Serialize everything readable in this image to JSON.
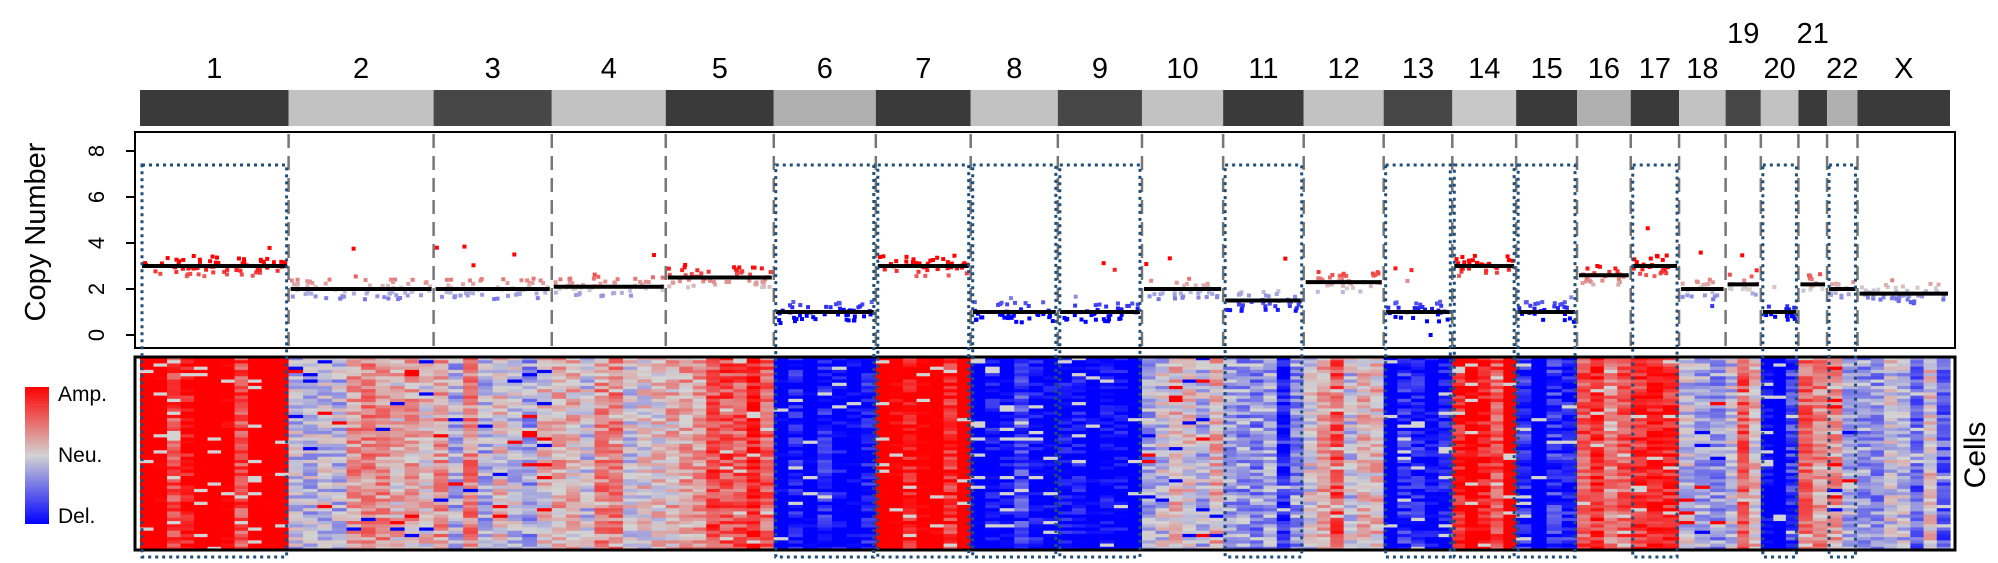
{
  "chart_data": {
    "type": "heatmap",
    "chromosomes": [
      {
        "name": "1",
        "size": 249,
        "shade": "#3a3a3a",
        "state": 3.0
      },
      {
        "name": "2",
        "size": 243,
        "shade": "#c2c2c2",
        "state": 2.0
      },
      {
        "name": "3",
        "size": 198,
        "shade": "#474747",
        "state": 2.0
      },
      {
        "name": "4",
        "size": 191,
        "shade": "#c2c2c2",
        "state": 2.1
      },
      {
        "name": "5",
        "size": 181,
        "shade": "#3a3a3a",
        "state": 2.5
      },
      {
        "name": "6",
        "size": 171,
        "shade": "#b0b0b0",
        "state": 1.0
      },
      {
        "name": "7",
        "size": 159,
        "shade": "#3a3a3a",
        "state": 3.0
      },
      {
        "name": "8",
        "size": 146,
        "shade": "#c2c2c2",
        "state": 1.0
      },
      {
        "name": "9",
        "size": 141,
        "shade": "#474747",
        "state": 1.0
      },
      {
        "name": "10",
        "size": 136,
        "shade": "#c2c2c2",
        "state": 2.0
      },
      {
        "name": "11",
        "size": 135,
        "shade": "#3a3a3a",
        "state": 1.5
      },
      {
        "name": "12",
        "size": 134,
        "shade": "#c2c2c2",
        "state": 2.3
      },
      {
        "name": "13",
        "size": 115,
        "shade": "#474747",
        "state": 1.0
      },
      {
        "name": "14",
        "size": 107,
        "shade": "#c8c8c8",
        "state": 3.0
      },
      {
        "name": "15",
        "size": 102,
        "shade": "#3a3a3a",
        "state": 1.0
      },
      {
        "name": "16",
        "size": 90,
        "shade": "#b0b0b0",
        "state": 2.6
      },
      {
        "name": "17",
        "size": 81,
        "shade": "#3a3a3a",
        "state": 3.0
      },
      {
        "name": "18",
        "size": 78,
        "shade": "#c2c2c2",
        "state": 2.0
      },
      {
        "name": "19",
        "size": 59,
        "shade": "#474747",
        "state": 2.2
      },
      {
        "name": "20",
        "size": 63,
        "shade": "#c2c2c2",
        "state": 1.0
      },
      {
        "name": "21",
        "size": 48,
        "shade": "#3a3a3a",
        "state": 2.2
      },
      {
        "name": "22",
        "size": 51,
        "shade": "#b0b0b0",
        "state": 2.0
      },
      {
        "name": "X",
        "size": 155,
        "shade": "#3a3a3a",
        "state": 1.8
      }
    ],
    "highlighted_chromosomes": [
      "1",
      "6",
      "7",
      "8",
      "9",
      "11",
      "13",
      "14",
      "15",
      "17",
      "20",
      "22"
    ],
    "ylabel": "Copy Number",
    "yticks": [
      0,
      2,
      4,
      6,
      8
    ],
    "ylim": [
      0,
      8.5
    ],
    "heatmap_ylabel": "Cells",
    "legend": {
      "labels": [
        "Amp.",
        "Neu.",
        "Del."
      ],
      "colors": [
        "#ff0000",
        "#d3d3d3",
        "#0000ff"
      ]
    },
    "colors": {
      "amp": "#ff0000",
      "neutral": "#d3d3d3",
      "del": "#0000ff",
      "segment": "#000000",
      "dashed_box": "#1f4e79"
    }
  }
}
